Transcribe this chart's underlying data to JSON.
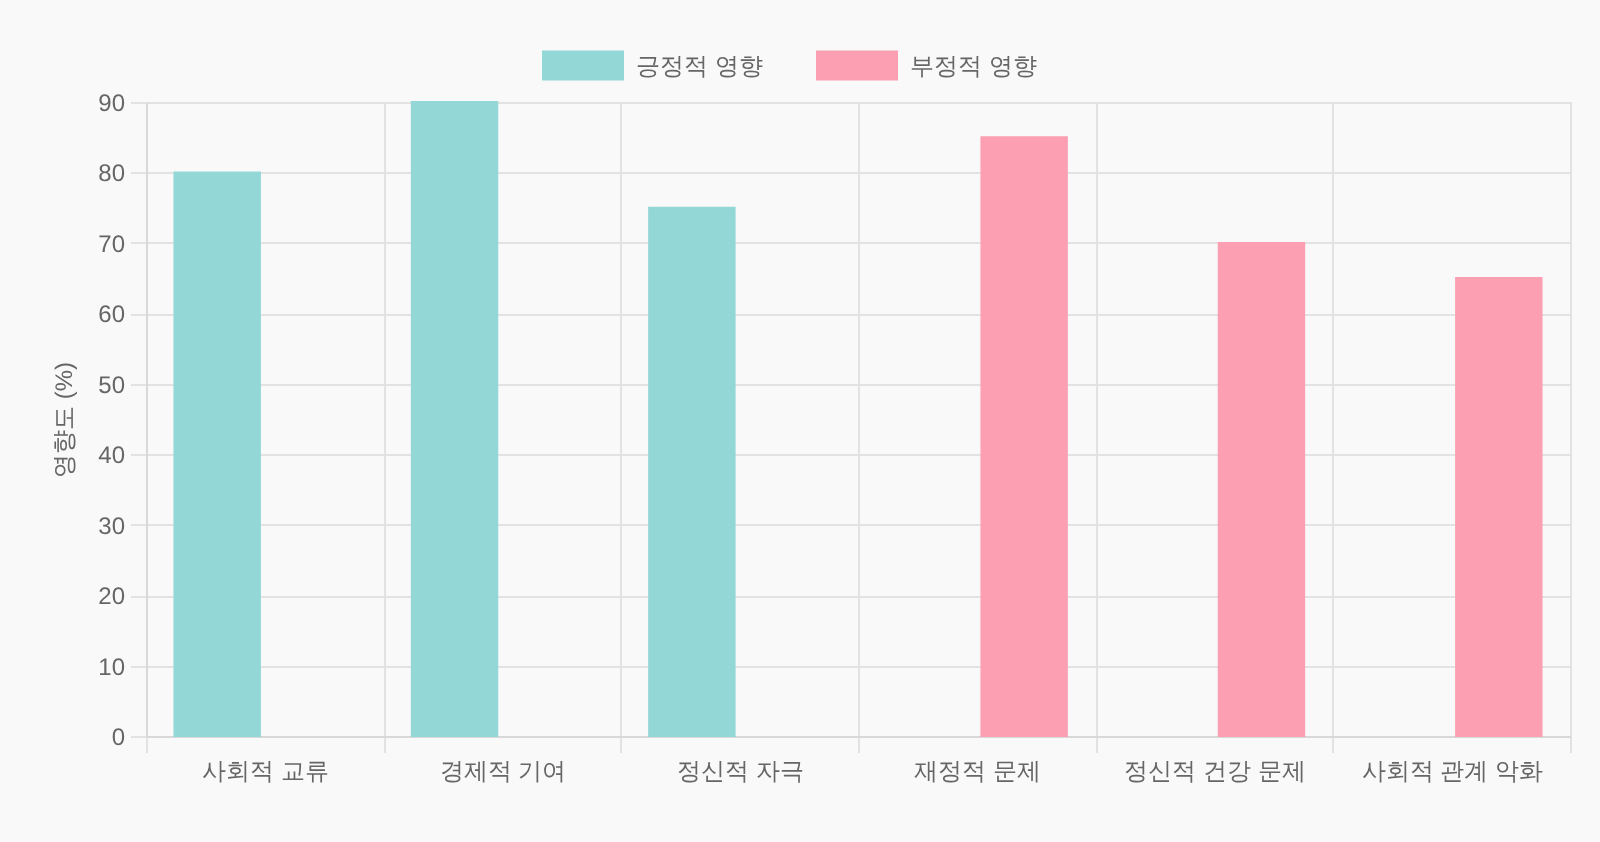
{
  "chart_data": {
    "type": "bar",
    "categories": [
      "사회적 교류",
      "경제적 기여",
      "정신적 자극",
      "재정적 문제",
      "정신적 건강 문제",
      "사회적 관계 악화"
    ],
    "series": [
      {
        "name": "긍정적 영향",
        "color": "#93d7d7",
        "values": [
          80,
          90,
          75,
          null,
          null,
          null
        ]
      },
      {
        "name": "부정적 영향",
        "color": "#fc9fb2",
        "values": [
          null,
          null,
          null,
          85,
          70,
          65
        ]
      }
    ],
    "ylabel": "영향도 (%)",
    "ylim": [
      0,
      90
    ],
    "yticks": [
      0,
      10,
      20,
      30,
      40,
      50,
      60,
      70,
      80,
      90
    ],
    "grid": true,
    "legend": "top"
  }
}
